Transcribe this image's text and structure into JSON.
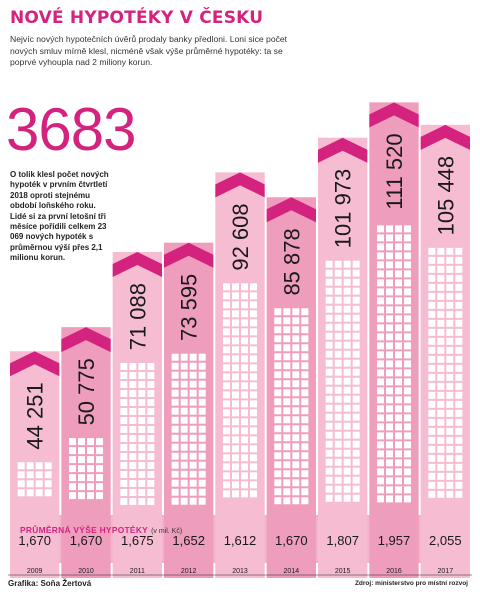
{
  "title": "NOVÉ HYPOTÉKY V ČESKU",
  "intro": "Nejvíc nových hypotečních úvěrů prodaly banky předloni. Loni sice počet nových smluv mírně klesl, nicméně však výše průměrné hypotéky: ta se poprvé vyhoupla nad 2 miliony korun.",
  "highlight": {
    "number": "3683",
    "note": "O tolik klesl počet nových hypoték v prvním čtvrtletí 2018 oproti stejnému období loňského roku. Lidé si za první letošní tři měsíce pořídili celkem 23 069 nových hypoték s průměrnou výší přes 2,1 milionu korun."
  },
  "avg_label": "PRŮMĚRNÁ VÝŠE HYPOTÉKY",
  "avg_unit": "(v mil. Kč)",
  "credit": "Grafika: Soňa Žertová",
  "source": "Zdroj: ministerstvo pro místní rozvoj",
  "colors": {
    "magenta": "#d4237f",
    "pink_light": "#f6bcd2",
    "pink_mid": "#ef9dbd",
    "band": "#f3b3cc",
    "window": "#ffffff"
  },
  "chart_data": {
    "type": "bar",
    "title": "NOVÉ HYPOTÉKY V ČESKU",
    "categories": [
      "2009",
      "2010",
      "2011",
      "2012",
      "2013",
      "2014",
      "2015",
      "2016",
      "2017"
    ],
    "series": [
      {
        "values": [
          44251,
          50775,
          71088,
          73595,
          92608,
          85878,
          101973,
          111520,
          105448
        ]
      },
      {
        "name": "PRŮMĚRNÁ VÝŠE HYPOTÉKY",
        "values": [
          1.67,
          1.67,
          1.675,
          1.652,
          1.612,
          1.67,
          1.807,
          1.957,
          2.055
        ]
      }
    ],
    "bar_labels": [
      "44 251",
      "50 775",
      "71 088",
      "73 595",
      "92 608",
      "85 878",
      "101 973",
      "111 520",
      "105 448"
    ],
    "avg_labels": [
      "1,670",
      "1,670",
      "1,675",
      "1,652",
      "1,612",
      "1,670",
      "1,807",
      "1,957",
      "2,055"
    ],
    "ylim": [
      0,
      120000
    ],
    "grid": false,
    "legend": "none"
  }
}
